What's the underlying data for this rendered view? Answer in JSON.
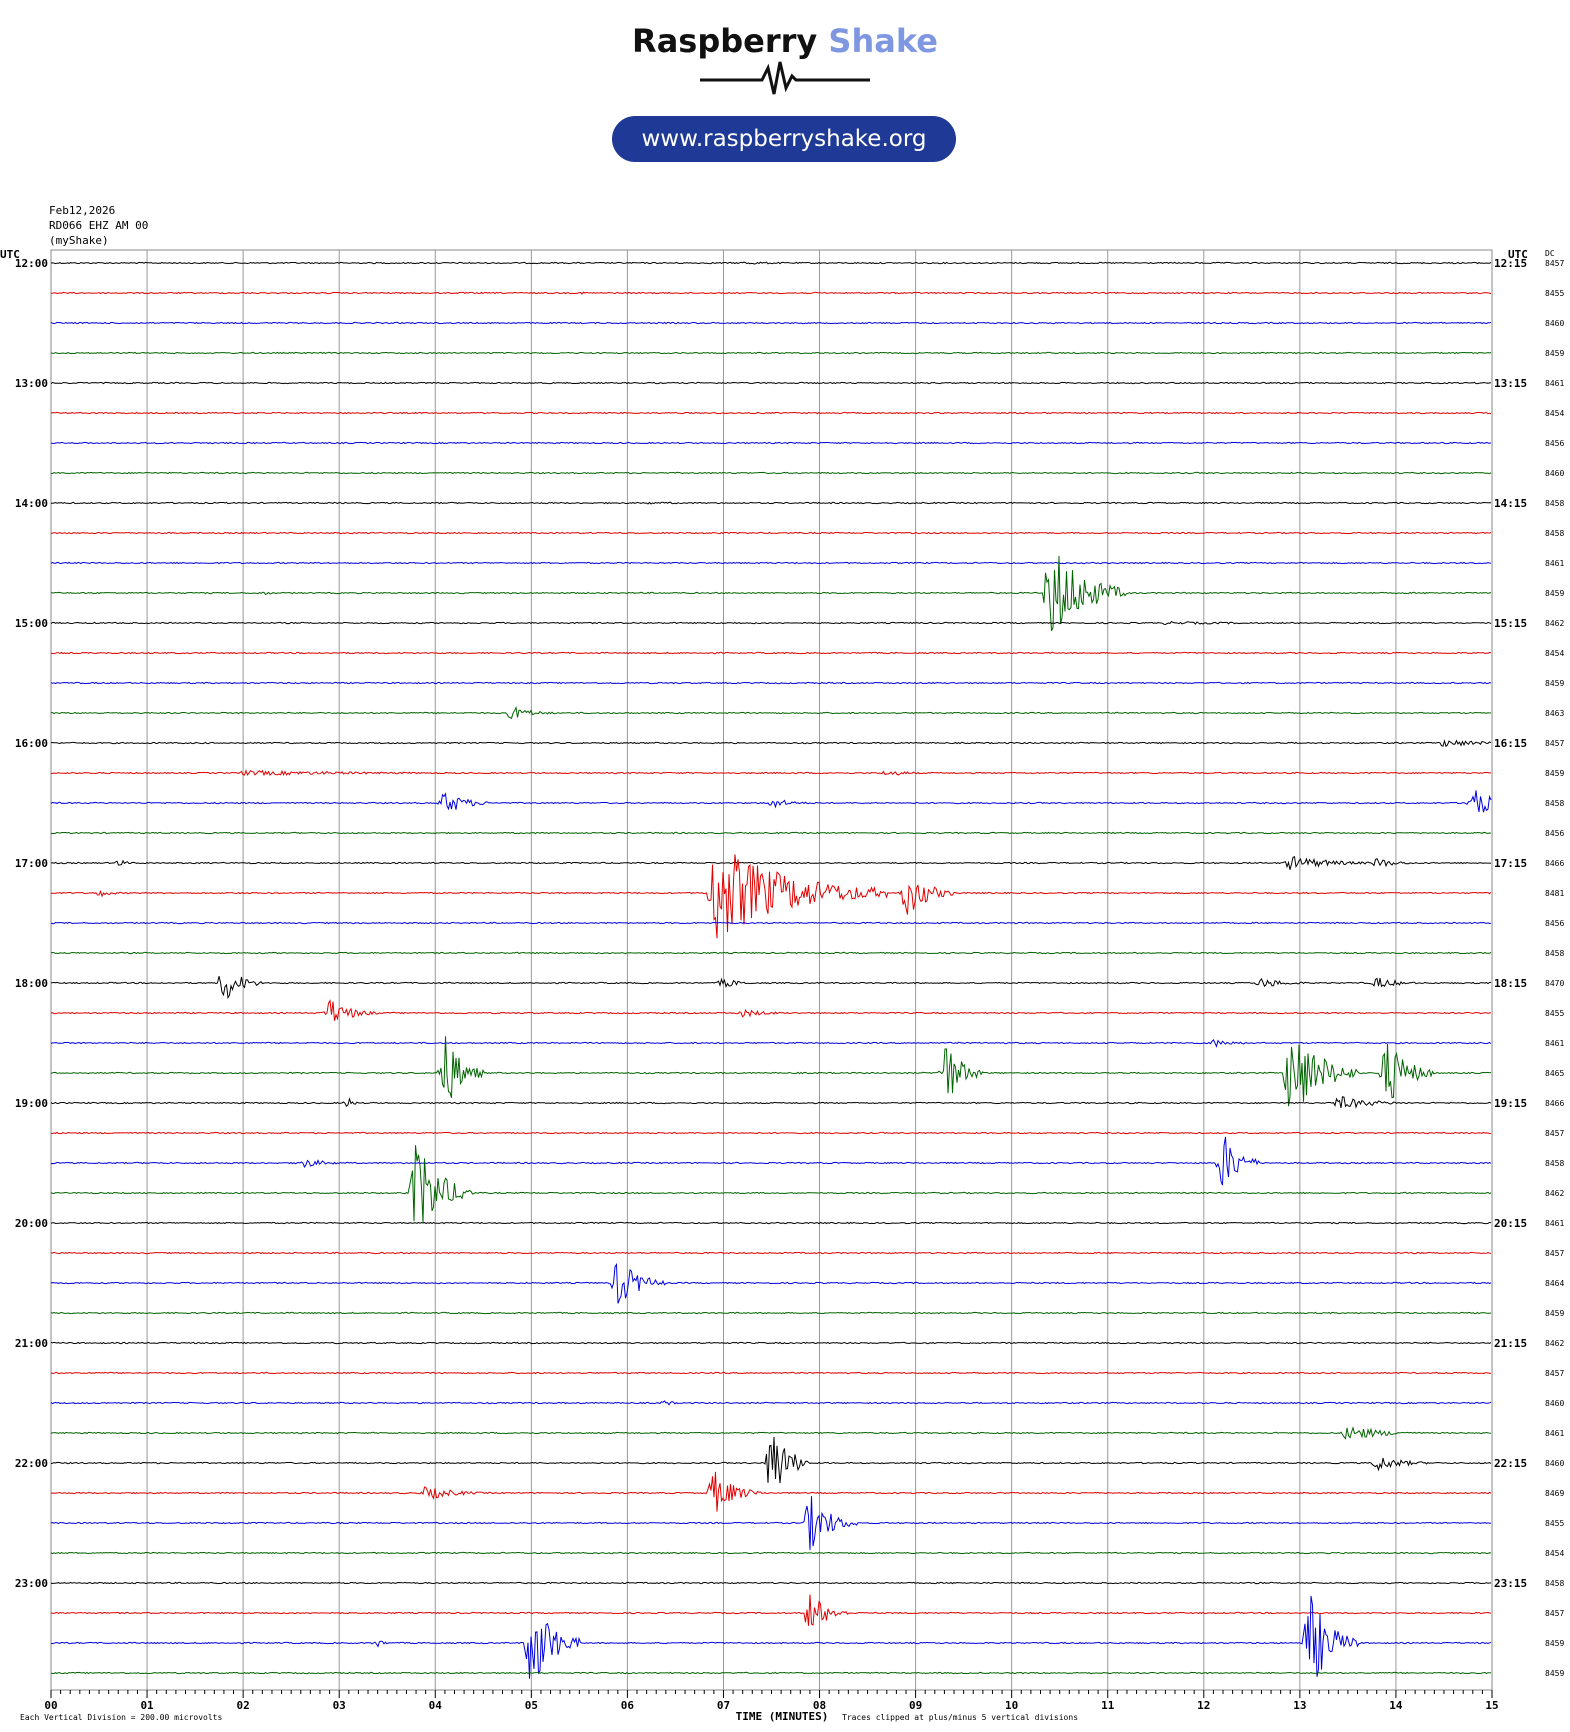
{
  "header": {
    "brand_part1": "Raspberry",
    "brand_part2": "Shake",
    "url": "www.raspberryshake.org",
    "brand_color_1": "#111111",
    "brand_color_2": "#7f97e0",
    "pill_color": "#1f3a96"
  },
  "meta": {
    "date": "Feb12,2026",
    "station": "RD066 EHZ AM 00",
    "network": "(myShake)"
  },
  "chart_data": {
    "type": "helicorder",
    "left_axis_label": "UTC",
    "right_axis_label": "UTC",
    "dc_label": "DC",
    "xlabel": "TIME (MINUTES)",
    "x_ticks": [
      "00",
      "01",
      "02",
      "03",
      "04",
      "05",
      "06",
      "07",
      "08",
      "09",
      "10",
      "11",
      "12",
      "13",
      "14",
      "15"
    ],
    "xlim": [
      0,
      15
    ],
    "footer_left": "Each Vertical Division = 200.00 microvolts",
    "footer_right": "Traces clipped at plus/minus 5 vertical divisions",
    "line_colors": [
      "#000000",
      "#e00000",
      "#0000e0",
      "#006400"
    ],
    "left_hour_labels": [
      "12:00",
      "13:00",
      "14:00",
      "15:00",
      "16:00",
      "17:00",
      "18:00",
      "19:00",
      "20:00",
      "21:00",
      "22:00",
      "23:00"
    ],
    "right_labels": [
      "12:15",
      "13:15",
      "14:15",
      "15:15",
      "16:15",
      "17:15",
      "18:15",
      "19:15",
      "20:15",
      "21:15",
      "22:15",
      "23:15"
    ],
    "dc_values": [
      8457,
      8455,
      8460,
      8459,
      8461,
      8454,
      8456,
      8460,
      8458,
      8458,
      8461,
      8459,
      8462,
      8454,
      8459,
      8463,
      8457,
      8459,
      8458,
      8456,
      8466,
      8481,
      8456,
      8458,
      8470,
      8455,
      8461,
      8465,
      8466,
      8457,
      8458,
      8462,
      8461,
      8457,
      8464,
      8459,
      8462,
      8457,
      8460,
      8461,
      8460,
      8469,
      8455,
      8454,
      8458,
      8457,
      8459,
      8459
    ],
    "events": [
      {
        "line": 0,
        "minute": 7.2,
        "dur": 1.3,
        "amp": 0.15
      },
      {
        "line": 1,
        "minute": 5.5,
        "dur": 0.6,
        "amp": 0.12
      },
      {
        "line": 8,
        "minute": 6.2,
        "dur": 1.5,
        "amp": 0.12
      },
      {
        "line": 11,
        "minute": 10.4,
        "dur": 0.8,
        "amp": 5
      },
      {
        "line": 11,
        "minute": 2.2,
        "dur": 0.3,
        "amp": 0.2
      },
      {
        "line": 12,
        "minute": 11.6,
        "dur": 2.5,
        "amp": 0.15
      },
      {
        "line": 15,
        "minute": 4.8,
        "dur": 0.5,
        "amp": 0.7
      },
      {
        "line": 16,
        "minute": 14.5,
        "dur": 1.0,
        "amp": 0.4
      },
      {
        "line": 17,
        "minute": 2.0,
        "dur": 3.5,
        "amp": 0.25
      },
      {
        "line": 17,
        "minute": 8.7,
        "dur": 0.6,
        "amp": 0.3
      },
      {
        "line": 18,
        "minute": 4.1,
        "dur": 0.5,
        "amp": 1.2
      },
      {
        "line": 18,
        "minute": 7.5,
        "dur": 0.5,
        "amp": 0.5
      },
      {
        "line": 18,
        "minute": 14.8,
        "dur": 0.5,
        "amp": 1.6
      },
      {
        "line": 20,
        "minute": 0.7,
        "dur": 0.2,
        "amp": 0.4
      },
      {
        "line": 20,
        "minute": 12.9,
        "dur": 1.0,
        "amp": 0.7
      },
      {
        "line": 20,
        "minute": 13.8,
        "dur": 0.5,
        "amp": 0.5
      },
      {
        "line": 21,
        "minute": 6.9,
        "dur": 1.8,
        "amp": 5
      },
      {
        "line": 21,
        "minute": 8.9,
        "dur": 0.5,
        "amp": 2.5
      },
      {
        "line": 21,
        "minute": 0.5,
        "dur": 0.3,
        "amp": 0.4
      },
      {
        "line": 24,
        "minute": 1.8,
        "dur": 0.4,
        "amp": 2.0
      },
      {
        "line": 24,
        "minute": 7.0,
        "dur": 0.4,
        "amp": 0.5
      },
      {
        "line": 24,
        "minute": 12.6,
        "dur": 0.6,
        "amp": 0.5
      },
      {
        "line": 24,
        "minute": 13.8,
        "dur": 0.5,
        "amp": 0.6
      },
      {
        "line": 25,
        "minute": 2.9,
        "dur": 0.5,
        "amp": 1.4
      },
      {
        "line": 25,
        "minute": 7.2,
        "dur": 0.6,
        "amp": 0.4
      },
      {
        "line": 26,
        "minute": 12.1,
        "dur": 0.5,
        "amp": 0.4
      },
      {
        "line": 27,
        "minute": 4.1,
        "dur": 0.4,
        "amp": 4
      },
      {
        "line": 27,
        "minute": 9.3,
        "dur": 0.4,
        "amp": 3.5
      },
      {
        "line": 27,
        "minute": 12.9,
        "dur": 0.7,
        "amp": 5
      },
      {
        "line": 27,
        "minute": 13.9,
        "dur": 0.5,
        "amp": 3.5
      },
      {
        "line": 28,
        "minute": 3.1,
        "dur": 0.15,
        "amp": 0.5
      },
      {
        "line": 28,
        "minute": 13.4,
        "dur": 0.8,
        "amp": 0.7
      },
      {
        "line": 30,
        "minute": 2.6,
        "dur": 0.6,
        "amp": 0.5
      },
      {
        "line": 30,
        "minute": 12.2,
        "dur": 0.4,
        "amp": 3
      },
      {
        "line": 31,
        "minute": 3.8,
        "dur": 0.6,
        "amp": 5
      },
      {
        "line": 34,
        "minute": 5.9,
        "dur": 0.5,
        "amp": 2.5
      },
      {
        "line": 38,
        "minute": 6.4,
        "dur": 0.2,
        "amp": 0.3
      },
      {
        "line": 39,
        "minute": 13.5,
        "dur": 0.8,
        "amp": 0.8
      },
      {
        "line": 40,
        "minute": 7.5,
        "dur": 0.4,
        "amp": 4
      },
      {
        "line": 40,
        "minute": 13.8,
        "dur": 0.6,
        "amp": 0.8
      },
      {
        "line": 41,
        "minute": 3.9,
        "dur": 0.7,
        "amp": 0.7
      },
      {
        "line": 41,
        "minute": 6.9,
        "dur": 0.5,
        "amp": 2.2
      },
      {
        "line": 42,
        "minute": 7.9,
        "dur": 0.5,
        "amp": 2.8
      },
      {
        "line": 45,
        "minute": 7.9,
        "dur": 0.4,
        "amp": 2.2
      },
      {
        "line": 46,
        "minute": 5.0,
        "dur": 0.5,
        "amp": 5
      },
      {
        "line": 46,
        "minute": 13.1,
        "dur": 0.5,
        "amp": 5
      },
      {
        "line": 46,
        "minute": 3.4,
        "dur": 0.2,
        "amp": 0.4
      }
    ]
  }
}
